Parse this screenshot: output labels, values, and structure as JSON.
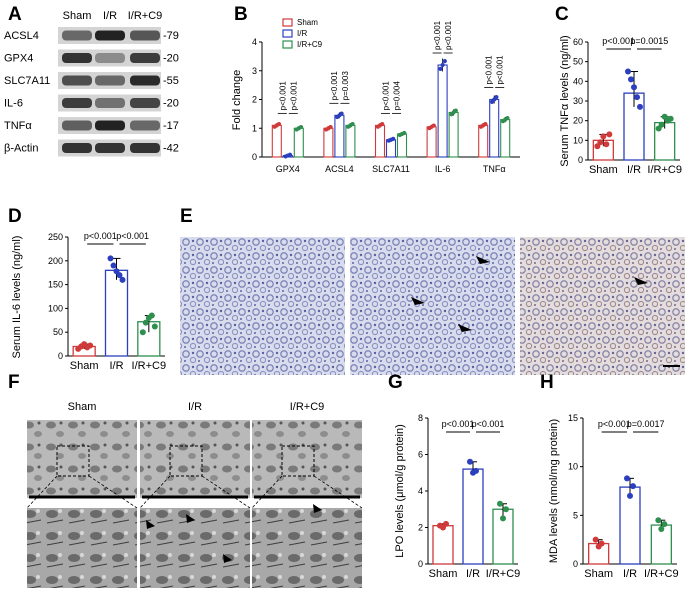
{
  "panel_labels": {
    "A": "A",
    "B": "B",
    "C": "C",
    "D": "D",
    "E": "E",
    "F": "F",
    "G": "G",
    "H": "H"
  },
  "western_blot": {
    "columns": [
      "Sham",
      "I/R",
      "I/R+C9"
    ],
    "rows": [
      {
        "protein": "ACSL4",
        "kda": "-79"
      },
      {
        "protein": "GPX4",
        "kda": "-20"
      },
      {
        "protein": "SLC7A11",
        "kda": "-55"
      },
      {
        "protein": "IL-6",
        "kda": "-20"
      },
      {
        "protein": "TNFα",
        "kda": "-17"
      },
      {
        "protein": "β-Actin",
        "kda": "-42"
      }
    ]
  },
  "histology_E": {
    "labels": [
      "Sham",
      "I/R",
      "I/R+C9"
    ]
  },
  "tem_F": {
    "labels": [
      "Sham",
      "I/R",
      "I/R+C9"
    ]
  },
  "colors": {
    "sham": "#d03a3a",
    "ir": "#2b3fbf",
    "c9": "#2e8f4e"
  },
  "chart_data": [
    {
      "id": "B",
      "type": "bar",
      "ylabel": "Fold change",
      "ylim": [
        0,
        4
      ],
      "yticks": [
        "0",
        "1",
        "2",
        "3",
        "4"
      ],
      "categories": [
        "GPX4",
        "ACSL4",
        "SLC7A11",
        "IL-6",
        "TNFα"
      ],
      "series": [
        {
          "name": "Sham",
          "values": [
            1.1,
            1.0,
            1.1,
            1.05,
            1.1
          ]
        },
        {
          "name": "I/R",
          "values": [
            0.05,
            1.45,
            0.6,
            3.2,
            2.0
          ]
        },
        {
          "name": "I/R+C9",
          "values": [
            1.0,
            1.1,
            0.8,
            1.55,
            1.3
          ]
        }
      ],
      "pvalues": [
        [
          "p<0.001",
          "p<0.001"
        ],
        [
          "p<0.001",
          "p=0.003"
        ],
        [
          "p<0.001",
          "p=0.004"
        ],
        [
          "p<0.001",
          "p<0.001"
        ],
        [
          "p<0.001",
          "p<0.001"
        ]
      ]
    },
    {
      "id": "C",
      "type": "bar",
      "ylabel": "Serum TNFα levels (ng/ml)",
      "ylim": [
        0,
        60
      ],
      "yticks": [
        "0",
        "10",
        "20",
        "30",
        "40",
        "50",
        "60"
      ],
      "categories": [
        "Sham",
        "I/R",
        "I/R+C9"
      ],
      "values": [
        10,
        34,
        19
      ],
      "points": [
        [
          7,
          9,
          12,
          8,
          13
        ],
        [
          45,
          41,
          37,
          32,
          27
        ],
        [
          16,
          18,
          22,
          20,
          21
        ]
      ],
      "pvalues": [
        "p<0.001",
        "p=0.0015"
      ]
    },
    {
      "id": "D",
      "type": "bar",
      "ylabel": "Serum IL-6 levels (ng/ml)",
      "ylim": [
        0,
        250
      ],
      "yticks": [
        "0",
        "50",
        "100",
        "150",
        "200",
        "250"
      ],
      "categories": [
        "Sham",
        "I/R",
        "I/R+C9"
      ],
      "values": [
        20,
        180,
        72
      ],
      "points": [
        [
          15,
          20,
          25,
          18,
          22
        ],
        [
          205,
          190,
          178,
          170,
          160
        ],
        [
          50,
          70,
          80,
          85,
          62
        ]
      ],
      "pvalues": [
        "p<0.001",
        "p<0.001"
      ]
    },
    {
      "id": "G",
      "type": "bar",
      "ylabel": "LPO levels (μmol/g protein)",
      "ylim": [
        0,
        8
      ],
      "yticks": [
        "0",
        "2",
        "4",
        "6",
        "8"
      ],
      "categories": [
        "Sham",
        "I/R",
        "I/R+C9"
      ],
      "values": [
        2.1,
        5.2,
        3.0
      ],
      "points": [
        [
          2.1,
          2.0,
          2.2
        ],
        [
          5.6,
          5.0,
          5.1
        ],
        [
          3.3,
          2.5,
          3.0
        ]
      ],
      "pvalues": [
        "p<0.001",
        "p<0.001"
      ]
    },
    {
      "id": "H",
      "type": "bar",
      "ylabel": "MDA levels (nmol/mg protein)",
      "ylim": [
        0,
        15
      ],
      "yticks": [
        "0",
        "5",
        "10",
        "15"
      ],
      "categories": [
        "Sham",
        "I/R",
        "I/R+C9"
      ],
      "values": [
        2.1,
        7.9,
        4.0
      ],
      "points": [
        [
          2.5,
          1.8,
          2.1
        ],
        [
          8.8,
          7.0,
          8.0
        ],
        [
          4.5,
          3.6,
          4.1
        ]
      ],
      "pvalues": [
        "p<0.001",
        "p=0.0017"
      ]
    }
  ]
}
